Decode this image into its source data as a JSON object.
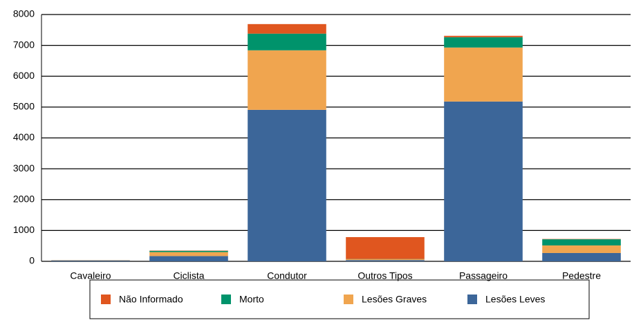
{
  "chart_data": {
    "type": "stacked_bar",
    "categories": [
      "Cavaleiro",
      "Ciclista",
      "Condutor",
      "Outros Tipos",
      "Passageiro",
      "Pedestre"
    ],
    "series": [
      {
        "name": "Lesões Leves",
        "color": "#3c6699",
        "values": [
          30,
          170,
          4910,
          40,
          5180,
          270
        ]
      },
      {
        "name": "Lesões Graves",
        "color": "#f0a54f",
        "values": [
          10,
          130,
          1930,
          30,
          1750,
          245
        ]
      },
      {
        "name": "Morto",
        "color": "#00936b",
        "values": [
          0,
          40,
          540,
          5,
          335,
          200
        ]
      },
      {
        "name": "Não Informado",
        "color": "#e0561f",
        "values": [
          0,
          10,
          310,
          710,
          45,
          10
        ]
      }
    ],
    "legend_order": [
      3,
      2,
      1,
      0
    ],
    "ylim": [
      0,
      8000
    ],
    "yticks": [
      0,
      1000,
      2000,
      3000,
      4000,
      5000,
      6000,
      7000,
      8000
    ],
    "grid": true
  }
}
